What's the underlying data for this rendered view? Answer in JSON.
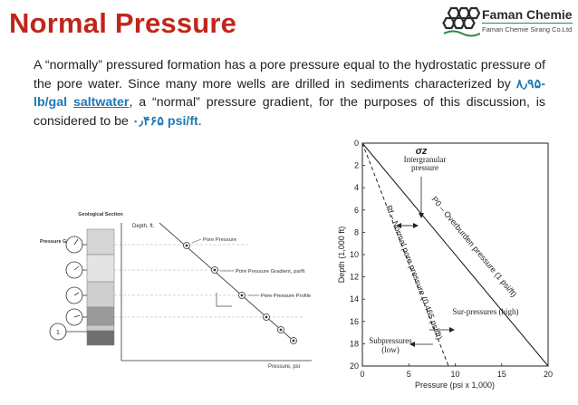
{
  "slide": {
    "title": "Normal Pressure"
  },
  "logo": {
    "name": "Faman Chemie",
    "subtitle": "Faman Chemie Sirang Co.Ltd"
  },
  "paragraph": {
    "part1": "A “normally” pressured formation has a pore pressure equal to the hydrostatic pressure of the pore water. Since many more wells are drilled in sediments characterized by ",
    "value1": "۸٫۹۵-lb/gal",
    "value1_word": "saltwater",
    "part2": ", a “normal” pressure gradient, for the purposes of this discussion, is considered to be ",
    "value2": "۰٫۴۶۵ psi/ft",
    "part3": "."
  },
  "left_figure": {
    "labels": {
      "section": "Geological Section",
      "gauge": "Pressure Guage",
      "depth": "Depth, ft.",
      "pore_pressure": "Pore Pressure",
      "gradient": "Pore Pressure Gradient, psi/ft",
      "profile": "Pore Pressure Profile",
      "x_axis": "Pressure, psi",
      "step": "1"
    }
  },
  "right_figure": {
    "labels": {
      "sigma": "σz",
      "intergranular": "Intergranular pressure",
      "overburden": "P0 – Overburden pressure (1 psi/ft)",
      "normal": "Pf – Normal pore pressure (0.465 psi/ft)",
      "sur": "Sur-pressures (high)",
      "sub": "Subpressures (low)",
      "y_axis": "Depth (1,000 ft)",
      "x_axis": "Pressure (psi x 1,000)"
    },
    "y_ticks": [
      "0",
      "2",
      "4",
      "6",
      "8",
      "10",
      "12",
      "14",
      "16",
      "18",
      "20"
    ],
    "x_ticks": [
      "0",
      "5",
      "10",
      "15",
      "20"
    ]
  }
}
